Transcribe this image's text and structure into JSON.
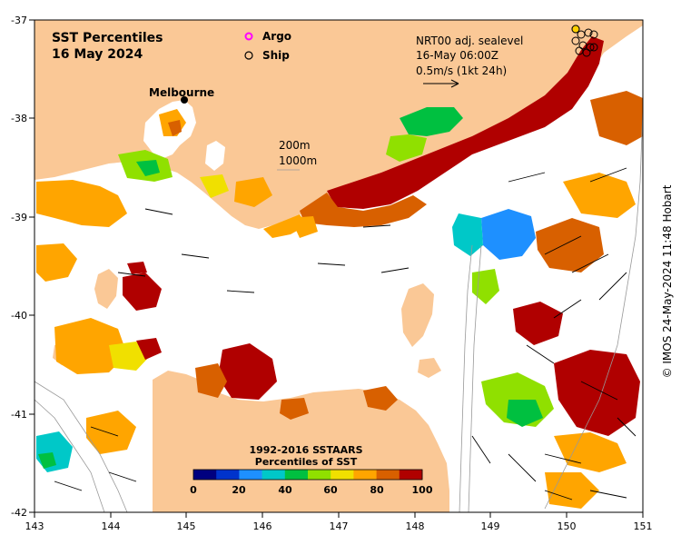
{
  "map": {
    "title_line1": "SST Percentiles",
    "title_line2": "16 May 2024",
    "legend_argo": "Argo",
    "legend_ship": "Ship",
    "city_label": "Melbourne",
    "current_line1": "NRT00 adj. sealevel",
    "current_line2": "16-May 06:00Z",
    "current_line3": "0.5m/s (1kt 24h)",
    "depth_200": "200m",
    "depth_1000": "1000m",
    "colorbar_title1": "1992-2016 SSTAARS",
    "colorbar_title2": "Percentiles of SST",
    "credit": "© IMOS 24-May-2024 11:48 Hobart",
    "lon_ticks": [
      "143",
      "144",
      "145",
      "146",
      "147",
      "148",
      "149",
      "150",
      "151"
    ],
    "lat_ticks": [
      "-37",
      "-38",
      "-39",
      "-40",
      "-41",
      "-42"
    ],
    "colorbar_ticks": [
      "0",
      "20",
      "40",
      "60",
      "80",
      "100"
    ],
    "colorbar_colors": [
      "#00007f",
      "#0033cc",
      "#1e90ff",
      "#00c8c8",
      "#00c040",
      "#90e000",
      "#f0e000",
      "#ffa500",
      "#d86000",
      "#b00000"
    ],
    "land_color": "#fac896",
    "ocean_color": "#ffffff",
    "argo_color": "#ff00ff",
    "ship_color": "#000000"
  }
}
